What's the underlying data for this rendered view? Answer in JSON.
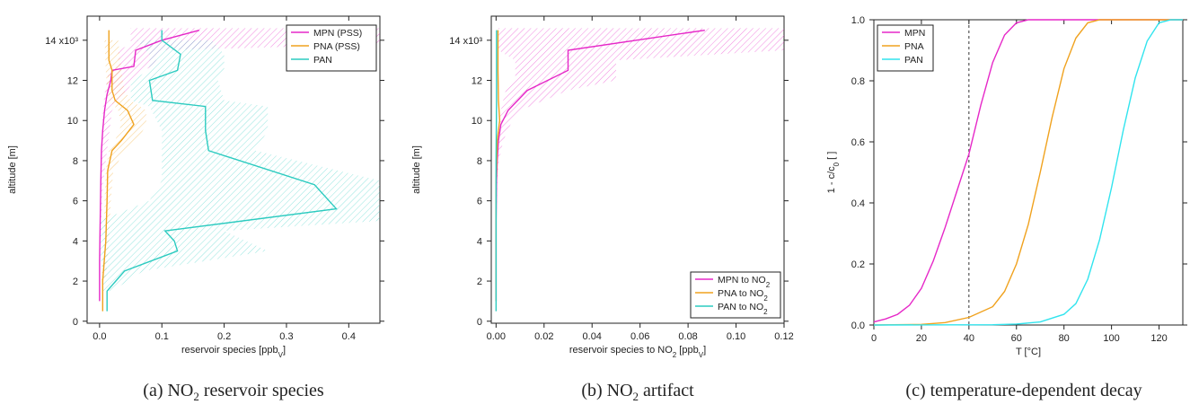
{
  "chart_data": [
    {
      "type": "line",
      "caption": {
        "prefix": "(a) NO",
        "sub": "2",
        "suffix": " reservoir species"
      },
      "xlabel": "reservoir species [ppb",
      "xlabel_sub": "V",
      "xlabel_end": "]",
      "ylabel": "altitude [m]",
      "xlim": [
        -0.02,
        0.45
      ],
      "ylim": [
        -0.1,
        15.2
      ],
      "xticks": [
        "0.0",
        "0.1",
        "0.2",
        "0.3",
        "0.4"
      ],
      "xtick_values": [
        0,
        0.1,
        0.2,
        0.3,
        0.4
      ],
      "yticks": [
        "0",
        "2",
        "4",
        "6",
        "8",
        "10",
        "12",
        "14 x10³"
      ],
      "ytick_values": [
        0,
        2,
        4,
        6,
        8,
        10,
        12,
        14
      ],
      "legend_position": "top-right",
      "series": [
        {
          "name": "MPN (PSS)",
          "color": "#e628c8",
          "points": [
            [
              0.0,
              1.0
            ],
            [
              0.0,
              3.0
            ],
            [
              0.001,
              5.0
            ],
            [
              0.002,
              7.0
            ],
            [
              0.003,
              8.5
            ],
            [
              0.005,
              9.5
            ],
            [
              0.008,
              10.5
            ],
            [
              0.012,
              11.3
            ],
            [
              0.018,
              12.0
            ],
            [
              0.02,
              12.5
            ],
            [
              0.055,
              12.7
            ],
            [
              0.058,
              13.5
            ],
            [
              0.1,
              14.0
            ],
            [
              0.16,
              14.5
            ]
          ],
          "band": [
            [
              0.0,
              1.0,
              0.0
            ],
            [
              0.0,
              3.0,
              0.0
            ],
            [
              0.001,
              5.0,
              0.003
            ],
            [
              0.002,
              7.0,
              0.006
            ],
            [
              0.003,
              8.5,
              0.012
            ],
            [
              0.004,
              9.5,
              0.016
            ],
            [
              0.005,
              10.5,
              0.02
            ],
            [
              0.008,
              11.3,
              0.04
            ],
            [
              0.012,
              12.0,
              0.055
            ],
            [
              0.015,
              12.5,
              0.07
            ],
            [
              0.03,
              12.7,
              0.085
            ],
            [
              0.03,
              13.5,
              0.1
            ],
            [
              0.05,
              13.8,
              0.45
            ],
            [
              0.05,
              14.6,
              0.45
            ]
          ]
        },
        {
          "name": "PNA (PSS)",
          "color": "#f0a21e",
          "points": [
            [
              0.005,
              0.5
            ],
            [
              0.005,
              2.0
            ],
            [
              0.01,
              4.0
            ],
            [
              0.012,
              6.0
            ],
            [
              0.013,
              7.5
            ],
            [
              0.02,
              8.5
            ],
            [
              0.035,
              9.0
            ],
            [
              0.055,
              9.8
            ],
            [
              0.045,
              10.5
            ],
            [
              0.025,
              11.0
            ],
            [
              0.02,
              11.5
            ],
            [
              0.02,
              12.5
            ],
            [
              0.015,
              13.0
            ],
            [
              0.015,
              14.0
            ],
            [
              0.015,
              14.5
            ]
          ],
          "band": [
            [
              0.003,
              2.0,
              0.01
            ],
            [
              0.007,
              4.0,
              0.015
            ],
            [
              0.008,
              6.0,
              0.018
            ],
            [
              0.01,
              7.5,
              0.022
            ],
            [
              0.015,
              8.5,
              0.04
            ],
            [
              0.025,
              9.0,
              0.06
            ],
            [
              0.035,
              9.8,
              0.075
            ],
            [
              0.03,
              10.5,
              0.075
            ],
            [
              0.015,
              11.0,
              0.05
            ],
            [
              0.012,
              11.5,
              0.04
            ],
            [
              0.01,
              12.5,
              0.035
            ],
            [
              0.008,
              14.0,
              0.03
            ]
          ]
        },
        {
          "name": "PAN",
          "color": "#2ccbc0",
          "points": [
            [
              0.012,
              0.5
            ],
            [
              0.012,
              1.5
            ],
            [
              0.04,
              2.5
            ],
            [
              0.125,
              3.5
            ],
            [
              0.12,
              4.0
            ],
            [
              0.105,
              4.5
            ],
            [
              0.38,
              5.6
            ],
            [
              0.345,
              6.8
            ],
            [
              0.175,
              8.5
            ],
            [
              0.17,
              9.5
            ],
            [
              0.17,
              10.7
            ],
            [
              0.085,
              11.0
            ],
            [
              0.08,
              12.0
            ],
            [
              0.125,
              12.5
            ],
            [
              0.13,
              13.3
            ],
            [
              0.1,
              14.0
            ],
            [
              0.1,
              14.5
            ]
          ],
          "band": [
            [
              0.005,
              1.5,
              0.02
            ],
            [
              0.005,
              2.5,
              0.07
            ],
            [
              0.0,
              3.5,
              0.27
            ],
            [
              0.0,
              4.5,
              0.2
            ],
            [
              0.0,
              5.0,
              0.45
            ],
            [
              0.08,
              6.0,
              0.45
            ],
            [
              0.1,
              7.0,
              0.45
            ],
            [
              0.1,
              8.5,
              0.25
            ],
            [
              0.1,
              9.5,
              0.27
            ],
            [
              0.08,
              10.7,
              0.27
            ],
            [
              0.05,
              11.0,
              0.2
            ],
            [
              0.05,
              12.0,
              0.19
            ],
            [
              0.08,
              12.5,
              0.2
            ],
            [
              0.08,
              13.3,
              0.2
            ],
            [
              0.06,
              14.0,
              0.18
            ]
          ]
        }
      ]
    },
    {
      "type": "line",
      "caption": {
        "prefix": "(b) NO",
        "sub": "2",
        "suffix": " artifact"
      },
      "xlabel": "reservoir species to NO",
      "xlabel_sub": "2",
      "xlabel_end": " [ppb",
      "xlabel_sub2": "V",
      "xlabel_end2": "]",
      "ylabel": "altitude [m]",
      "xlim": [
        -0.002,
        0.12
      ],
      "ylim": [
        -0.1,
        15.2
      ],
      "xticks": [
        "0.00",
        "0.02",
        "0.04",
        "0.06",
        "0.08",
        "0.10",
        "0.12"
      ],
      "xtick_values": [
        0,
        0.02,
        0.04,
        0.06,
        0.08,
        0.1,
        0.12
      ],
      "yticks": [
        "0",
        "2",
        "4",
        "6",
        "8",
        "10",
        "12",
        "14 x10³"
      ],
      "ytick_values": [
        0,
        2,
        4,
        6,
        8,
        10,
        12,
        14
      ],
      "legend_position": "bottom-right",
      "legend": [
        {
          "name": "MPN to NO",
          "sub": "2",
          "color": "#e628c8"
        },
        {
          "name": "PNA to NO",
          "sub": "2",
          "color": "#f0a21e"
        },
        {
          "name": "PAN to NO",
          "sub": "2",
          "color": "#2ccbc0"
        }
      ],
      "series": [
        {
          "name": "MPN to NO2",
          "color": "#e628c8",
          "points": [
            [
              0.0,
              1.0
            ],
            [
              0.0,
              5.0
            ],
            [
              0.0002,
              7.0
            ],
            [
              0.0005,
              8.0
            ],
            [
              0.001,
              9.0
            ],
            [
              0.002,
              9.8
            ],
            [
              0.005,
              10.5
            ],
            [
              0.009,
              11.0
            ],
            [
              0.013,
              11.5
            ],
            [
              0.03,
              12.5
            ],
            [
              0.03,
              13.5
            ],
            [
              0.087,
              14.5
            ]
          ],
          "band": [
            [
              0.0,
              1.0,
              0.0
            ],
            [
              0.0,
              5.0,
              0.0002
            ],
            [
              0.0001,
              7.0,
              0.0006
            ],
            [
              0.0002,
              8.0,
              0.0012
            ],
            [
              0.0005,
              9.0,
              0.003
            ],
            [
              0.001,
              9.8,
              0.006
            ],
            [
              0.002,
              10.5,
              0.01
            ],
            [
              0.003,
              11.0,
              0.02
            ],
            [
              0.004,
              11.5,
              0.03
            ],
            [
              0.008,
              12.0,
              0.05
            ],
            [
              0.008,
              13.0,
              0.05
            ],
            [
              0.001,
              13.5,
              0.12
            ],
            [
              0.001,
              14.6,
              0.12
            ]
          ]
        },
        {
          "name": "PNA to NO2",
          "color": "#f0a21e",
          "points": [
            [
              0.0,
              1.0
            ],
            [
              0.0,
              7.0
            ],
            [
              0.0005,
              9.0
            ],
            [
              0.0015,
              10.0
            ],
            [
              0.001,
              11.0
            ],
            [
              0.0008,
              12.5
            ],
            [
              0.0008,
              14.5
            ]
          ]
        },
        {
          "name": "PAN to NO2",
          "color": "#2ccbc0",
          "points": [
            [
              0.0,
              0.5
            ],
            [
              0.0,
              4.0
            ],
            [
              0.0,
              8.0
            ],
            [
              0.0002,
              11.0
            ],
            [
              0.0002,
              14.5
            ]
          ]
        }
      ]
    },
    {
      "type": "line",
      "caption": {
        "prefix": "(c) temperature-dependent decay",
        "sub": "",
        "suffix": ""
      },
      "xlabel": "T [°C]",
      "ylabel": "1 - c/c",
      "ylabel_sub": "0",
      "ylabel_end": " [ ]",
      "xlim": [
        0,
        130
      ],
      "ylim": [
        0,
        1.0
      ],
      "xticks": [
        "0",
        "20",
        "40",
        "60",
        "80",
        "100",
        "120"
      ],
      "xtick_values": [
        0,
        20,
        40,
        60,
        80,
        100,
        120
      ],
      "yticks": [
        "0.0",
        "0.2",
        "0.4",
        "0.6",
        "0.8",
        "1.0"
      ],
      "ytick_values": [
        0,
        0.2,
        0.4,
        0.6,
        0.8,
        1.0
      ],
      "vline_x": 40,
      "legend_position": "top-left",
      "series": [
        {
          "name": "MPN",
          "color": "#e628c8",
          "points": [
            [
              0,
              0.01
            ],
            [
              5,
              0.02
            ],
            [
              10,
              0.035
            ],
            [
              15,
              0.065
            ],
            [
              20,
              0.12
            ],
            [
              25,
              0.21
            ],
            [
              30,
              0.32
            ],
            [
              35,
              0.44
            ],
            [
              40,
              0.56
            ],
            [
              45,
              0.72
            ],
            [
              50,
              0.86
            ],
            [
              55,
              0.95
            ],
            [
              60,
              0.99
            ],
            [
              65,
              1.0
            ],
            [
              130,
              1.0
            ]
          ]
        },
        {
          "name": "PNA",
          "color": "#f0a21e",
          "points": [
            [
              0,
              0.0
            ],
            [
              20,
              0.002
            ],
            [
              30,
              0.008
            ],
            [
              40,
              0.025
            ],
            [
              50,
              0.06
            ],
            [
              55,
              0.11
            ],
            [
              60,
              0.2
            ],
            [
              65,
              0.33
            ],
            [
              70,
              0.5
            ],
            [
              75,
              0.68
            ],
            [
              80,
              0.84
            ],
            [
              85,
              0.94
            ],
            [
              90,
              0.99
            ],
            [
              95,
              1.0
            ],
            [
              130,
              1.0
            ]
          ]
        },
        {
          "name": "PAN",
          "color": "#31e4ee",
          "points": [
            [
              0,
              0.0
            ],
            [
              50,
              0.001
            ],
            [
              60,
              0.003
            ],
            [
              70,
              0.01
            ],
            [
              80,
              0.035
            ],
            [
              85,
              0.07
            ],
            [
              90,
              0.15
            ],
            [
              95,
              0.28
            ],
            [
              100,
              0.45
            ],
            [
              105,
              0.64
            ],
            [
              110,
              0.81
            ],
            [
              115,
              0.93
            ],
            [
              120,
              0.99
            ],
            [
              125,
              1.0
            ],
            [
              130,
              1.0
            ]
          ]
        }
      ]
    }
  ]
}
